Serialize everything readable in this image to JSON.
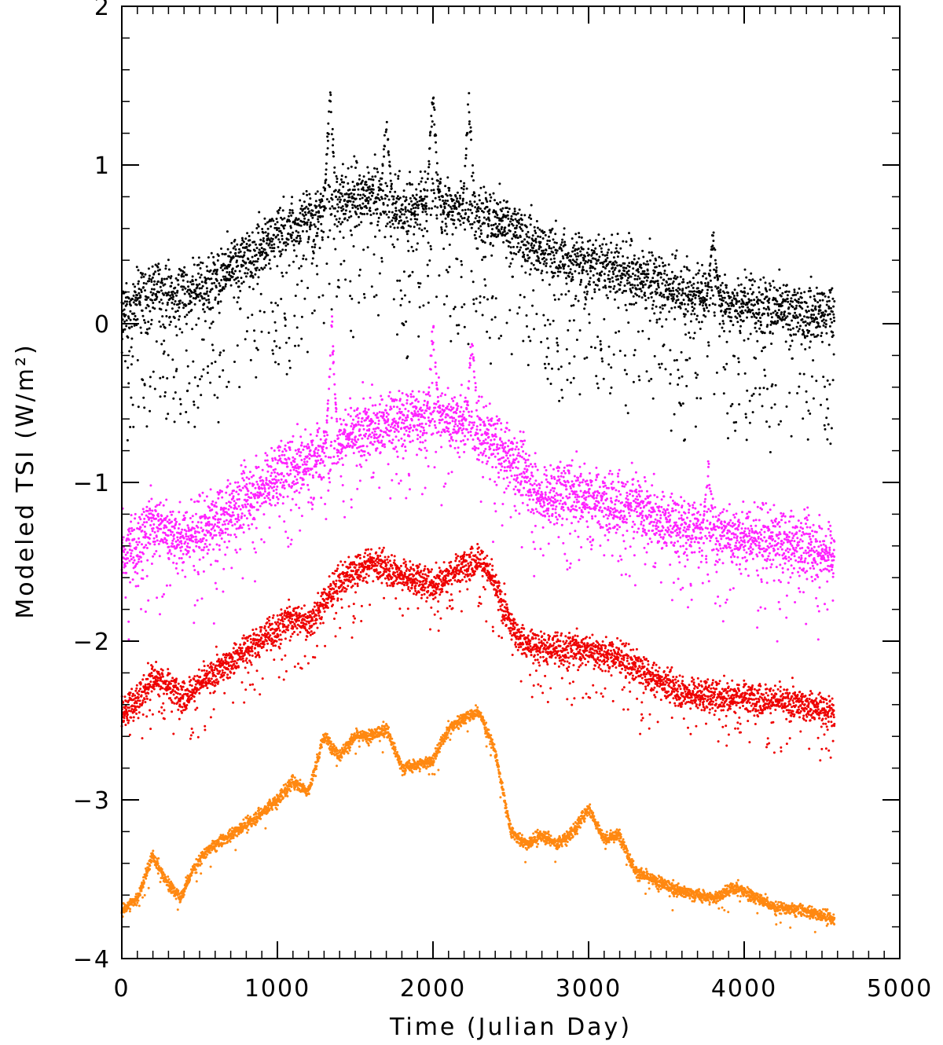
{
  "chart_data": {
    "type": "scatter",
    "title": "",
    "xlabel": "Time (Julian Day)",
    "ylabel": "Modeled TSI (W/m²)",
    "xlim": [
      0,
      5000
    ],
    "ylim": [
      -4,
      2
    ],
    "x_major_ticks": [
      0,
      1000,
      2000,
      3000,
      4000,
      5000
    ],
    "x_tick_labels": [
      "0",
      "1000",
      "2000",
      "3000",
      "4000",
      "5000"
    ],
    "y_major_ticks": [
      -4,
      -3,
      -2,
      -1,
      0,
      1,
      2
    ],
    "y_tick_labels": [
      "−4",
      "−3",
      "−2",
      "−1",
      "0",
      "1",
      "2"
    ],
    "x_minor_step": 100,
    "y_minor_step": 0.2,
    "grid": false,
    "legend": "none",
    "x_data_range": [
      0,
      4580
    ],
    "series": [
      {
        "color": "#000000",
        "trend": {
          "x": [
            0,
            100,
            200,
            400,
            600,
            800,
            1000,
            1200,
            1400,
            1600,
            1800,
            2000,
            2200,
            2400,
            2600,
            2700,
            2900,
            3100,
            3300,
            3500,
            3700,
            3900,
            4100,
            4300,
            4580
          ],
          "y": [
            0.05,
            0.12,
            0.22,
            0.18,
            0.28,
            0.42,
            0.55,
            0.65,
            0.78,
            0.82,
            0.72,
            0.78,
            0.75,
            0.65,
            0.55,
            0.45,
            0.38,
            0.38,
            0.3,
            0.25,
            0.18,
            0.15,
            0.12,
            0.08,
            0.05
          ]
        },
        "spread": 0.25,
        "dip_fraction": 0.18,
        "dip_depth": 0.8,
        "peaks": [
          {
            "x": 1340,
            "y": 1.6
          },
          {
            "x": 2000,
            "y": 1.55
          },
          {
            "x": 2230,
            "y": 1.48
          },
          {
            "x": 1700,
            "y": 1.35
          },
          {
            "x": 3800,
            "y": 0.62
          }
        ]
      },
      {
        "color": "#ff22ff",
        "trend": {
          "x": [
            0,
            100,
            200,
            400,
            600,
            800,
            1000,
            1200,
            1400,
            1600,
            1800,
            2000,
            2200,
            2400,
            2600,
            2700,
            2900,
            3100,
            3300,
            3500,
            3700,
            3900,
            4100,
            4300,
            4580
          ],
          "y": [
            -1.45,
            -1.38,
            -1.25,
            -1.35,
            -1.25,
            -1.1,
            -0.95,
            -0.85,
            -0.75,
            -0.65,
            -0.6,
            -0.58,
            -0.6,
            -0.75,
            -0.95,
            -1.1,
            -1.05,
            -1.12,
            -1.15,
            -1.25,
            -1.3,
            -1.32,
            -1.35,
            -1.38,
            -1.45
          ]
        },
        "spread": 0.25,
        "dip_fraction": 0.1,
        "dip_depth": 0.5,
        "peaks": [
          {
            "x": 1350,
            "y": 0.12
          },
          {
            "x": 2000,
            "y": 0.05
          },
          {
            "x": 2250,
            "y": 0.0
          },
          {
            "x": 3770,
            "y": -0.85
          }
        ]
      },
      {
        "color": "#ee0000",
        "trend": {
          "x": [
            0,
            100,
            200,
            300,
            400,
            600,
            800,
            1000,
            1100,
            1200,
            1400,
            1600,
            1800,
            2000,
            2200,
            2300,
            2400,
            2500,
            2600,
            2800,
            3000,
            3200,
            3400,
            3600,
            3800,
            4000,
            4200,
            4400,
            4580
          ],
          "y": [
            -2.45,
            -2.38,
            -2.22,
            -2.28,
            -2.35,
            -2.2,
            -2.05,
            -1.92,
            -1.85,
            -1.88,
            -1.62,
            -1.5,
            -1.58,
            -1.65,
            -1.52,
            -1.48,
            -1.65,
            -1.9,
            -2.02,
            -2.05,
            -2.05,
            -2.1,
            -2.22,
            -2.32,
            -2.35,
            -2.35,
            -2.38,
            -2.4,
            -2.45
          ]
        },
        "spread": 0.13,
        "dip_fraction": 0.08,
        "dip_depth": 0.35,
        "peaks": []
      },
      {
        "color": "#ff8811",
        "trend": {
          "x": [
            0,
            100,
            200,
            280,
            380,
            450,
            550,
            700,
            850,
            1000,
            1100,
            1200,
            1300,
            1400,
            1500,
            1600,
            1700,
            1800,
            1900,
            2000,
            2100,
            2200,
            2300,
            2400,
            2500,
            2600,
            2700,
            2800,
            2900,
            3000,
            3100,
            3200,
            3300,
            3400,
            3600,
            3800,
            3950,
            4050,
            4200,
            4400,
            4580
          ],
          "y": [
            -3.7,
            -3.62,
            -3.35,
            -3.5,
            -3.62,
            -3.45,
            -3.32,
            -3.22,
            -3.12,
            -3.0,
            -2.88,
            -2.95,
            -2.6,
            -2.72,
            -2.6,
            -2.6,
            -2.55,
            -2.8,
            -2.78,
            -2.75,
            -2.55,
            -2.48,
            -2.45,
            -2.7,
            -3.2,
            -3.28,
            -3.22,
            -3.28,
            -3.2,
            -3.05,
            -3.25,
            -3.22,
            -3.45,
            -3.5,
            -3.58,
            -3.62,
            -3.55,
            -3.6,
            -3.68,
            -3.7,
            -3.75
          ]
        },
        "spread": 0.05,
        "dip_fraction": 0.02,
        "dip_depth": 0.12,
        "peaks": []
      }
    ]
  }
}
